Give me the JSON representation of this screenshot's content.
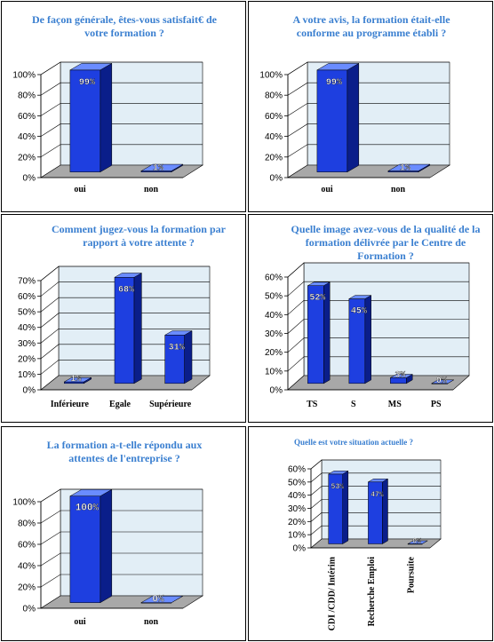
{
  "colors": {
    "title": "#3A7FD0",
    "bar_face": "#1E3FE0",
    "bar_side": "#0A1E8A",
    "bar_top": "#6A8CFF",
    "wall": "#E2EEF6",
    "floor": "#A8A8A8"
  },
  "chart_data": [
    {
      "type": "bar",
      "title": [
        "De façon générale, êtes-vous satisfait€ de",
        "votre formation ?"
      ],
      "categories": [
        "oui",
        "non"
      ],
      "values": [
        99,
        1
      ],
      "value_labels": [
        "99%",
        "1%"
      ],
      "yticks": [
        "0%",
        "20%",
        "40%",
        "60%",
        "80%",
        "100%"
      ],
      "ylim": [
        0,
        100
      ],
      "grid": true
    },
    {
      "type": "bar",
      "title": [
        "A votre avis, la formation était-elle",
        "conforme au programme établi ?"
      ],
      "categories": [
        "oui",
        "non"
      ],
      "values": [
        99,
        1
      ],
      "value_labels": [
        "99%",
        "1%"
      ],
      "yticks": [
        "0%",
        "20%",
        "40%",
        "60%",
        "80%",
        "100%"
      ],
      "ylim": [
        0,
        100
      ],
      "grid": true
    },
    {
      "type": "bar",
      "title": [
        "Comment jugez-vous la formation par",
        "rapport à votre attente ?"
      ],
      "categories": [
        "Inférieure",
        "Egale",
        "Supérieure"
      ],
      "values": [
        1,
        68,
        31
      ],
      "value_labels": [
        "1%",
        "68%",
        "31%"
      ],
      "yticks": [
        "0%",
        "10%",
        "20%",
        "30%",
        "40%",
        "50%",
        "60%",
        "70%"
      ],
      "ylim": [
        0,
        70
      ],
      "grid": true
    },
    {
      "type": "bar",
      "title": [
        "Quelle image avez-vous de la qualité de la",
        "formation délivrée par le Centre de",
        "Formation ?"
      ],
      "categories": [
        "TS",
        "S",
        "MS",
        "PS"
      ],
      "values": [
        52,
        45,
        3,
        0
      ],
      "value_labels": [
        "52%",
        "45%",
        "3%",
        "0%"
      ],
      "yticks": [
        "0%",
        "10%",
        "20%",
        "30%",
        "40%",
        "50%",
        "60%"
      ],
      "ylim": [
        0,
        60
      ],
      "grid": true
    },
    {
      "type": "bar",
      "title": [
        "La formation a-t-elle répondu aux",
        "attentes de l'entreprise ?"
      ],
      "categories": [
        "oui",
        "non"
      ],
      "values": [
        100,
        0
      ],
      "value_labels": [
        "100%",
        "0%"
      ],
      "yticks": [
        "0%",
        "20%",
        "40%",
        "60%",
        "80%",
        "100%"
      ],
      "ylim": [
        0,
        100
      ],
      "grid": true
    },
    {
      "type": "bar",
      "title": [
        "Quelle est votre situation actuelle ?"
      ],
      "categories": [
        "CDI /CDD/ Intérim",
        "Recherche Emploi",
        "Poursuite"
      ],
      "values": [
        53,
        47,
        0
      ],
      "value_labels": [
        "53%",
        "47%",
        "0%"
      ],
      "yticks": [
        "0%",
        "10%",
        "20%",
        "30%",
        "40%",
        "50%",
        "60%"
      ],
      "ylim": [
        0,
        60
      ],
      "grid": true
    }
  ]
}
